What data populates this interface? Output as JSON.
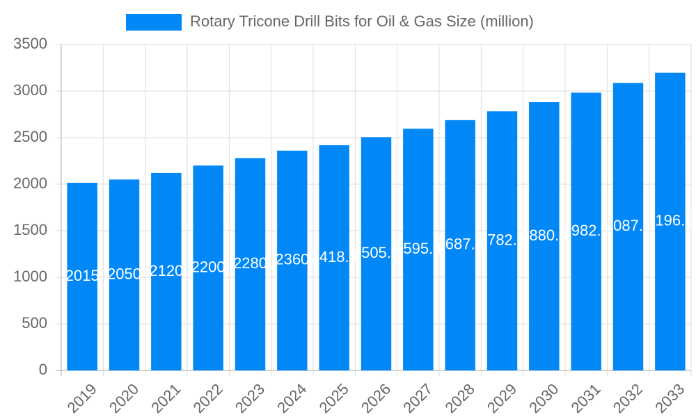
{
  "chart_data": {
    "type": "bar",
    "legend": "Rotary Tricone Drill Bits for Oil & Gas Size (million)",
    "categories": [
      "2019",
      "2020",
      "2021",
      "2022",
      "2023",
      "2024",
      "2025",
      "2026",
      "2027",
      "2028",
      "2029",
      "2030",
      "2031",
      "2032",
      "2033"
    ],
    "values": [
      2015,
      2050,
      2120,
      2200,
      2280,
      2360,
      2418.5,
      2505.2,
      2595.4,
      2687.8,
      2782.2,
      2880.3,
      2982.5,
      3087.5,
      3196.5
    ],
    "color": "#0288f6",
    "ylim": [
      0,
      3500
    ],
    "yticks": [
      0,
      500,
      1000,
      1500,
      2000,
      2500,
      3000,
      3500
    ],
    "grid": true
  }
}
